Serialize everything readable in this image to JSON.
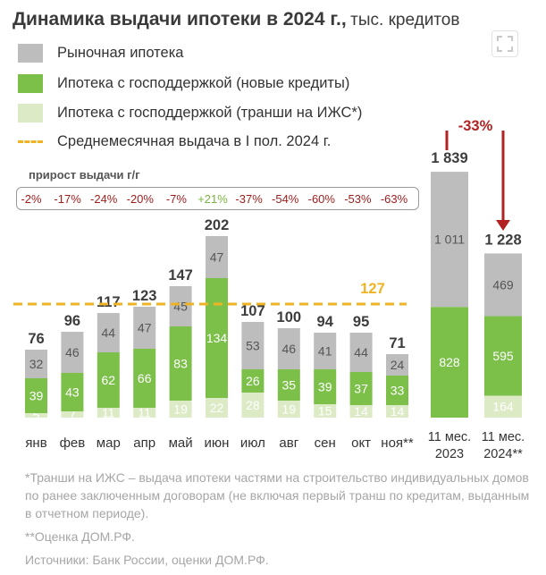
{
  "header": {
    "title": "Динамика выдачи ипотеки в 2024 г.,",
    "subtitle": "тыс. кредитов"
  },
  "legend": {
    "market": "Рыночная ипотека",
    "state_new": "Ипотека с господдержкой (новые кредиты)",
    "state_tranches": "Ипотека с господдержкой (транши на ИЖС*)",
    "avg_line": "Среднемесячная выдача в I пол. 2024 г."
  },
  "growth": {
    "title": "прирост выдачи г/г",
    "values": [
      "-2%",
      "-17%",
      "-24%",
      "-20%",
      "-7%",
      "+21%",
      "-37%",
      "-54%",
      "-60%",
      "-53%",
      "-63%"
    ],
    "positive_color": "#7cb342",
    "negative_color": "#9e1b1b"
  },
  "comparison": {
    "change": "-33%",
    "color": "#b22222"
  },
  "notes": [
    "*Транши на ИЖС – выдача ипотеки частями на строительство индивидуальных домов по ранее заключенным договорам (не включая первый транш по кредитам, выданным в отчетном периоде).",
    "**Оценка ДОМ.РФ.",
    "Источники: Банк России, оценки ДОМ.РФ."
  ],
  "chart_data": {
    "type": "bar",
    "stacked": true,
    "categories": [
      "янв",
      "фев",
      "мар",
      "апр",
      "май",
      "июн",
      "июл",
      "авг",
      "сен",
      "окт",
      "ноя**"
    ],
    "series": [
      {
        "name": "Ипотека с господдержкой (транши на ИЖС*)",
        "values": [
          5,
          7,
          11,
          11,
          19,
          22,
          28,
          19,
          15,
          14,
          14
        ],
        "color": "#dcebc6"
      },
      {
        "name": "Ипотека с господдержкой (новые кредиты)",
        "values": [
          39,
          43,
          62,
          66,
          83,
          134,
          26,
          35,
          39,
          37,
          33
        ],
        "color": "#7cc04a"
      },
      {
        "name": "Рыночная ипотека",
        "values": [
          32,
          46,
          44,
          47,
          45,
          47,
          53,
          46,
          41,
          44,
          24
        ],
        "color": "#bdbdbd"
      }
    ],
    "totals": [
      76,
      96,
      117,
      123,
      147,
      202,
      107,
      100,
      94,
      95,
      71
    ],
    "reference_line": {
      "name": "Среднемесячная выдача в I пол. 2024 г.",
      "value": 127,
      "color": "#f0b323"
    },
    "summary": {
      "categories": [
        "11 мес. 2023",
        "11 мес. 2024**"
      ],
      "tranches": [
        null,
        164
      ],
      "state_new": [
        828,
        595
      ],
      "market": [
        1011,
        469
      ],
      "totals": [
        1839,
        1228
      ]
    },
    "colors": {
      "market": "#bdbdbd",
      "state_new": "#7cc04a",
      "tranches": "#dcebc6",
      "total_label": "#3d3d3d",
      "value_label": "#ffffff",
      "value_label_dark": "#555555",
      "tranche_label": "#ffffff"
    }
  }
}
